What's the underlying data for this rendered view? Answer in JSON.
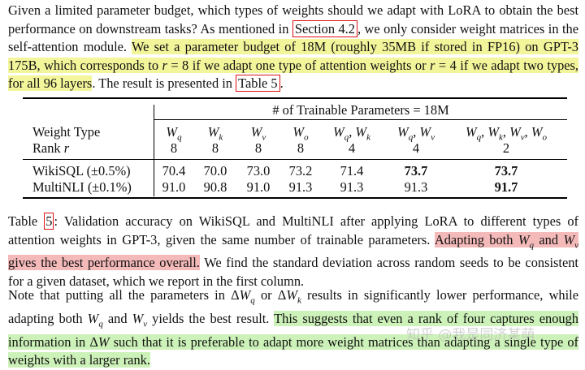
{
  "para1": {
    "t1": "Given a limited parameter budget, which types of weights should we adapt with LoRA to obtain the best performance on downstream tasks? As mentioned in ",
    "ref1": "Section 4.2",
    "t2": ", we only consider weight matrices in the self-attention module. ",
    "hl1": "We set a parameter budget of 18M (roughly 35MB if stored in FP16) on GPT-3 175B, which corresponds to ",
    "hl1_m1": "r",
    "hl1_m2": " = 8",
    "hl1_b": " if we adapt one type of attention weights or ",
    "hl1_m3": "r",
    "hl1_m4": " = 4",
    "hl1_c": " if we adapt two types, for all 96 layers",
    "t3": ". The result is presented in ",
    "ref2": "Table 5",
    "t4": "."
  },
  "table": {
    "group_header": "# of Trainable Parameters = 18M",
    "row_label_1": "Weight Type",
    "row_label_2_a": "Rank ",
    "row_label_2_b": "r",
    "weight_types": [
      "Wq",
      "Wk",
      "Wv",
      "Wo",
      "Wq, Wk",
      "Wq, Wv",
      "Wq, Wk, Wv, Wo"
    ],
    "ranks": [
      "8",
      "8",
      "8",
      "8",
      "4",
      "4",
      "2"
    ],
    "rows": [
      {
        "label": "WikiSQL (±0.5%)",
        "values": [
          "70.4",
          "70.0",
          "73.0",
          "73.2",
          "71.4",
          "73.7",
          "73.7"
        ],
        "bold": [
          false,
          false,
          false,
          false,
          false,
          true,
          true
        ]
      },
      {
        "label": "MultiNLI (±0.1%)",
        "values": [
          "91.0",
          "90.8",
          "91.0",
          "91.3",
          "91.3",
          "91.3",
          "91.7"
        ],
        "bold": [
          false,
          false,
          false,
          false,
          false,
          false,
          true
        ]
      }
    ]
  },
  "caption": {
    "t1": "Table ",
    "ref": "5",
    "t2": ": Validation accuracy on WikiSQL and MultiNLI after applying LoRA to different types of attention weights in GPT-3, given the same number of trainable parameters. ",
    "hl_a": "Adapting both ",
    "hl_b": " and ",
    "hl_c": " gives the best performance overall.",
    "t3": " We find the standard deviation across random seeds to be consistent for a given dataset, which we report in the first column."
  },
  "para3": {
    "t1": "Note that putting all the parameters in ",
    "t2": " or ",
    "t3": " results in significantly lower performance, while adapting both ",
    "t4": " and ",
    "t5": " yields the best result. ",
    "hl_a": "This suggests that even a rank of four captures enough information in ",
    "hl_b": " such that it is preferable to adapt more weight matrices than adapting a single type of weights with a larger rank."
  },
  "watermark": "知乎 @我是同济某萌"
}
